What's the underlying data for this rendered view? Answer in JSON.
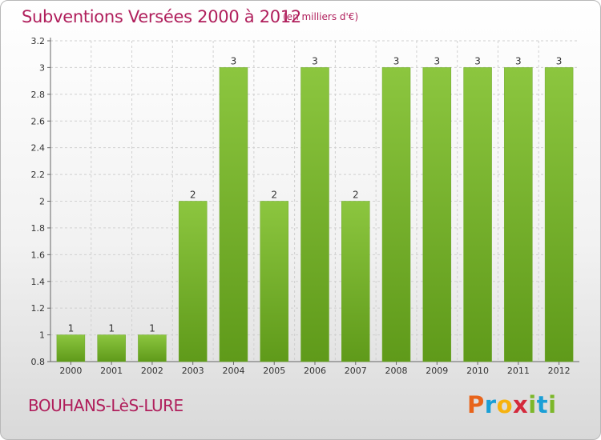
{
  "chart_data": {
    "type": "bar",
    "title": "Subventions Versées 2000 à 2012",
    "subtitle": "(en milliers d'€)",
    "xlabel": "",
    "ylabel": "",
    "categories": [
      "2000",
      "2001",
      "2002",
      "2003",
      "2004",
      "2005",
      "2006",
      "2007",
      "2008",
      "2009",
      "2010",
      "2011",
      "2012"
    ],
    "values": [
      1,
      1,
      1,
      2,
      3,
      2,
      3,
      2,
      3,
      3,
      3,
      3,
      3
    ],
    "data_labels": [
      "1",
      "1",
      "1",
      "2",
      "3",
      "2",
      "3",
      "2",
      "3",
      "3",
      "3",
      "3",
      "3"
    ],
    "ylim": [
      0.8,
      3.2
    ],
    "yticks": [
      0.8,
      1,
      1.2,
      1.4,
      1.6,
      1.8,
      2,
      2.2,
      2.4,
      2.6,
      2.8,
      3,
      3.2
    ],
    "ytick_labels": [
      "0.8",
      "1",
      "1.2",
      "1.4",
      "1.6",
      "1.8",
      "2",
      "2.2",
      "2.4",
      "2.6",
      "2.8",
      "3",
      "3.2"
    ],
    "grid": true,
    "bar_color": "#8cc63f",
    "bar_color_dark": "#5f9a1a"
  },
  "footer": {
    "commune": "BOUHANS-LèS-LURE",
    "logo_letters": [
      "P",
      "r",
      "o",
      "x",
      "i",
      "t",
      "i"
    ],
    "logo_colors": [
      "#e8641b",
      "#1a9fd6",
      "#f6b20f",
      "#d42a3c",
      "#7cb72a",
      "#1a9fd6",
      "#7cb72a"
    ]
  }
}
